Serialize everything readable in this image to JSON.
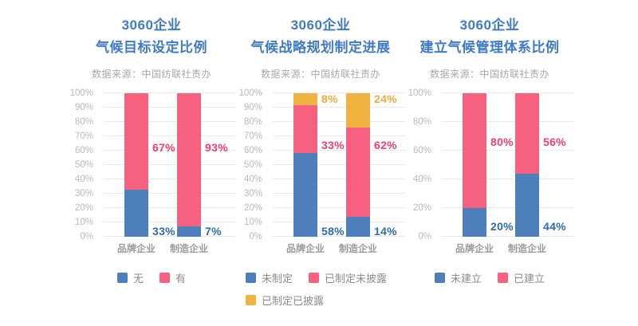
{
  "colors": {
    "title_blue": "#3f7bc3",
    "source_gray": "#a8a8a8",
    "axis_tick_gray": "#b9b9b9",
    "category_gray": "#9a9a9a",
    "legend_text_gray": "#8c8c8c",
    "gridline_gray": "#e9e9e9",
    "bar_blue": "#4d80ba",
    "bar_pink": "#f5617e",
    "bar_yellow": "#f0b341",
    "label_blue": "#2b6cab",
    "label_pink": "#ee3f6d",
    "label_yellow": "#f2a93c"
  },
  "chart_data": [
    {
      "type": "bar",
      "stacked": true,
      "title_lines": [
        "3060企业",
        "气候目标设定比例"
      ],
      "source": "数据来源：中国纺联社责办",
      "categories": [
        "品牌企业",
        "制造企业"
      ],
      "series": [
        {
          "name": "无",
          "color": "#4d80ba",
          "label_color": "#2b6cab",
          "values": [
            33,
            7
          ],
          "label_y": 4
        },
        {
          "name": "有",
          "color": "#f5617e",
          "label_color": "#ee3f6d",
          "values": [
            67,
            93
          ],
          "label_y": 62
        }
      ],
      "value_suffix": "%",
      "ylim": [
        0,
        100
      ],
      "yticks": [
        "0%",
        "10%",
        "20%",
        "30%",
        "40%",
        "50%",
        "60%",
        "70%",
        "80%",
        "90%",
        "100%"
      ],
      "grid": true,
      "legend_position": "bottom",
      "legend_align": "center"
    },
    {
      "type": "bar",
      "stacked": true,
      "title_lines": [
        "3060企业",
        "气候战略规划制定进展"
      ],
      "source": "数据来源：中国纺联社责办",
      "categories": [
        "品牌企业",
        "制造企业"
      ],
      "series": [
        {
          "name": "未制定",
          "color": "#4d80ba",
          "label_color": "#2b6cab",
          "values": [
            58,
            14
          ],
          "label_y": 4
        },
        {
          "name": "已制定未披露",
          "color": "#f5617e",
          "label_color": "#ee3f6d",
          "values": [
            33,
            62
          ],
          "label_y": 64
        },
        {
          "name": "已制定已披露",
          "color": "#f0b341",
          "label_color": "#f2a93c",
          "values": [
            8,
            24
          ],
          "label_y": 96
        }
      ],
      "value_suffix": "%",
      "ylim": [
        0,
        100
      ],
      "yticks": [
        "0%",
        "10%",
        "20%",
        "30%",
        "40%",
        "50%",
        "60%",
        "70%",
        "80%",
        "90%",
        "100%"
      ],
      "grid": true,
      "legend_position": "bottom",
      "legend_align": "left"
    },
    {
      "type": "bar",
      "stacked": true,
      "title_lines": [
        "3060企业",
        "建立气候管理体系比例"
      ],
      "source": "数据来源：中国纺联社责办",
      "categories": [
        "品牌企业",
        "制造企业"
      ],
      "series": [
        {
          "name": "未建立",
          "color": "#4d80ba",
          "label_color": "#2b6cab",
          "values": [
            20,
            44
          ],
          "label_y": 7
        },
        {
          "name": "已建立",
          "color": "#f5617e",
          "label_color": "#ee3f6d",
          "values": [
            80,
            56
          ],
          "label_y": 66
        }
      ],
      "value_suffix": "%",
      "ylim": [
        0,
        100
      ],
      "yticks": [
        "0%",
        "20%",
        "40%",
        "60%",
        "80%",
        "100%"
      ],
      "grid": true,
      "legend_position": "bottom",
      "legend_align": "center"
    }
  ]
}
